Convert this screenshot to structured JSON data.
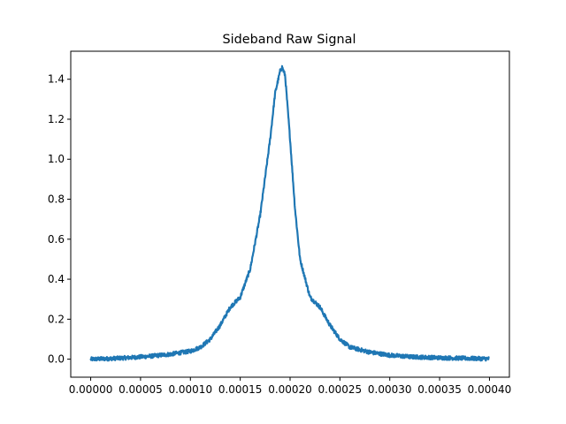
{
  "chart_data": {
    "type": "line",
    "title": "Sideband Raw Signal",
    "xlabel": "",
    "ylabel": "",
    "xlim": [
      -2e-05,
      0.00042
    ],
    "ylim": [
      -0.09,
      1.54
    ],
    "x_ticks": [
      0.0,
      5e-05,
      0.0001,
      0.00015,
      0.0002,
      0.00025,
      0.0003,
      0.00035,
      0.0004
    ],
    "x_tick_labels": [
      "0.00000",
      "0.00005",
      "0.00010",
      "0.00015",
      "0.00020",
      "0.00025",
      "0.00030",
      "0.00035",
      "0.00040"
    ],
    "y_ticks": [
      0.0,
      0.2,
      0.4,
      0.6,
      0.8,
      1.0,
      1.2,
      1.4
    ],
    "y_tick_labels": [
      "0.0",
      "0.2",
      "0.4",
      "0.6",
      "0.8",
      "1.0",
      "1.2",
      "1.4"
    ],
    "grid": false,
    "colors": {
      "series": "#1f77b4"
    },
    "series": [
      {
        "x": [
          0.0,
          2e-05,
          4e-05,
          6e-05,
          8e-05,
          0.0001,
          0.00011,
          0.00012,
          0.00013,
          0.00014,
          0.00015,
          0.00016,
          0.00017,
          0.00018,
          0.000185,
          0.00019,
          0.000192,
          0.000195,
          0.0002,
          0.000205,
          0.00021,
          0.00022,
          0.00023,
          0.00024,
          0.00025,
          0.00026,
          0.00028,
          0.0003,
          0.00032,
          0.00035,
          0.00038,
          0.0004
        ],
        "values": [
          0.0,
          0.003,
          0.008,
          0.015,
          0.025,
          0.04,
          0.06,
          0.1,
          0.17,
          0.26,
          0.31,
          0.45,
          0.72,
          1.1,
          1.33,
          1.44,
          1.46,
          1.42,
          1.1,
          0.75,
          0.5,
          0.31,
          0.26,
          0.17,
          0.1,
          0.06,
          0.035,
          0.02,
          0.012,
          0.007,
          0.004,
          0.002
        ]
      }
    ]
  }
}
